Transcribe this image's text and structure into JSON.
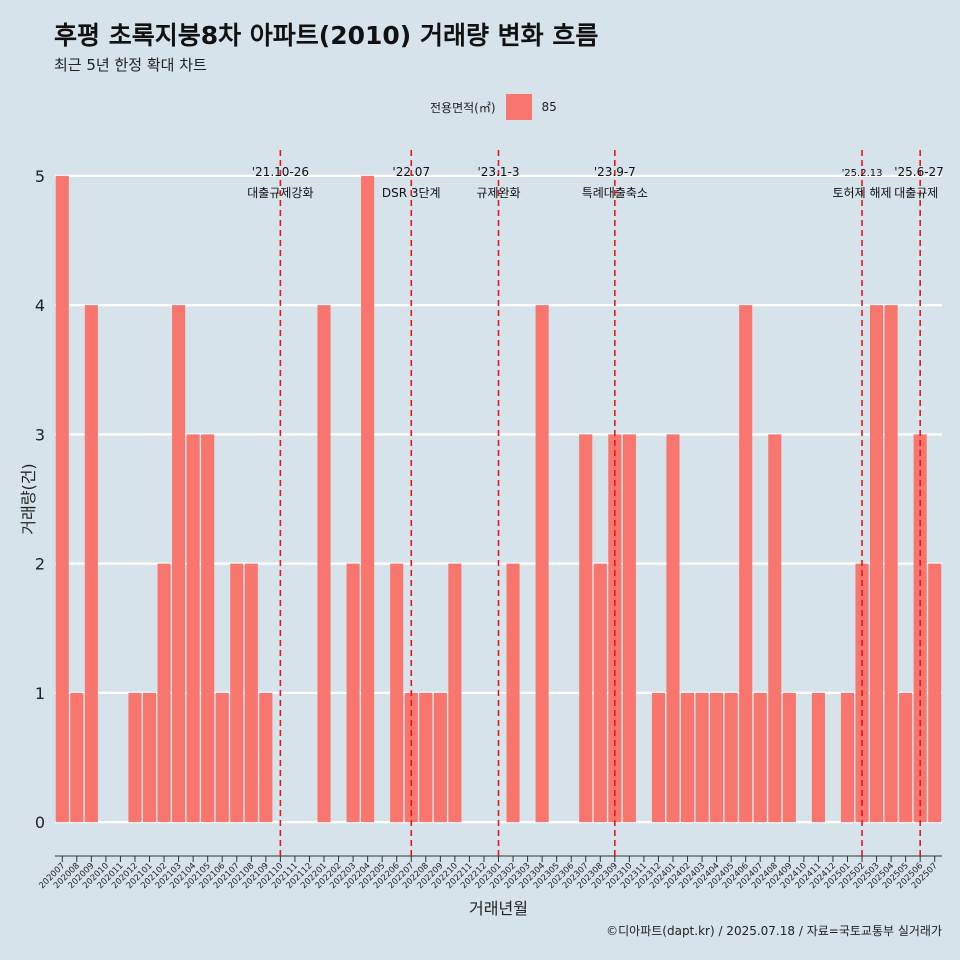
{
  "header": {
    "title": "후평 초록지붕8차 아파트(2010) 거래량 변화 흐름",
    "subtitle": "최근 5년 한정 확대 차트"
  },
  "legend": {
    "title": "전용면적(㎡)",
    "label": "85",
    "color": "#f8766d"
  },
  "caption": "©디아파트(dapt.kr) / 2025.07.18 / 자료=국토교통부 실거래가",
  "chart_data": {
    "type": "bar",
    "xlabel": "거래년월",
    "ylabel": "거래량(건)",
    "ylim": [
      -0.2,
      5.2
    ],
    "yticks": [
      0,
      1,
      2,
      3,
      4,
      5
    ],
    "grid": true,
    "legend_position": "top",
    "categories": [
      "202007",
      "202008",
      "202009",
      "202010",
      "202011",
      "202012",
      "202101",
      "202102",
      "202103",
      "202104",
      "202105",
      "202106",
      "202107",
      "202108",
      "202109",
      "202110",
      "202111",
      "202112",
      "202201",
      "202202",
      "202203",
      "202204",
      "202205",
      "202206",
      "202207",
      "202208",
      "202209",
      "202210",
      "202211",
      "202212",
      "202301",
      "202302",
      "202303",
      "202304",
      "202305",
      "202306",
      "202307",
      "202308",
      "202309",
      "202310",
      "202311",
      "202312",
      "202401",
      "202402",
      "202403",
      "202404",
      "202405",
      "202406",
      "202407",
      "202408",
      "202409",
      "202410",
      "202411",
      "202412",
      "202501",
      "202502",
      "202503",
      "202504",
      "202505",
      "202506",
      "202507"
    ],
    "series": [
      {
        "name": "85",
        "color": "#f8766d",
        "values": [
          5,
          1,
          4,
          0,
          0,
          1,
          1,
          2,
          4,
          3,
          3,
          1,
          2,
          2,
          1,
          0,
          0,
          0,
          4,
          0,
          2,
          5,
          0,
          2,
          1,
          1,
          1,
          2,
          0,
          0,
          0,
          2,
          0,
          4,
          0,
          0,
          3,
          2,
          3,
          3,
          0,
          1,
          3,
          1,
          1,
          1,
          1,
          4,
          1,
          3,
          1,
          0,
          1,
          0,
          1,
          2,
          4,
          4,
          1,
          3,
          2
        ]
      }
    ],
    "annotations": [
      {
        "date": "'21.10-26",
        "text": "대출규제강화",
        "category": "202110"
      },
      {
        "date": "'22.07",
        "text": "DSR 3단계",
        "category": "202207"
      },
      {
        "date": "'23.1-3",
        "text": "규제완화",
        "category": "202301"
      },
      {
        "date": "'23.9-7",
        "text": "특례대출축소",
        "category": "202309"
      },
      {
        "date": "'25.2.13",
        "text": "토허제 해제",
        "category": "202502"
      },
      {
        "date": "'25.6-27",
        "text": "대출규제",
        "category": "202506"
      }
    ]
  }
}
